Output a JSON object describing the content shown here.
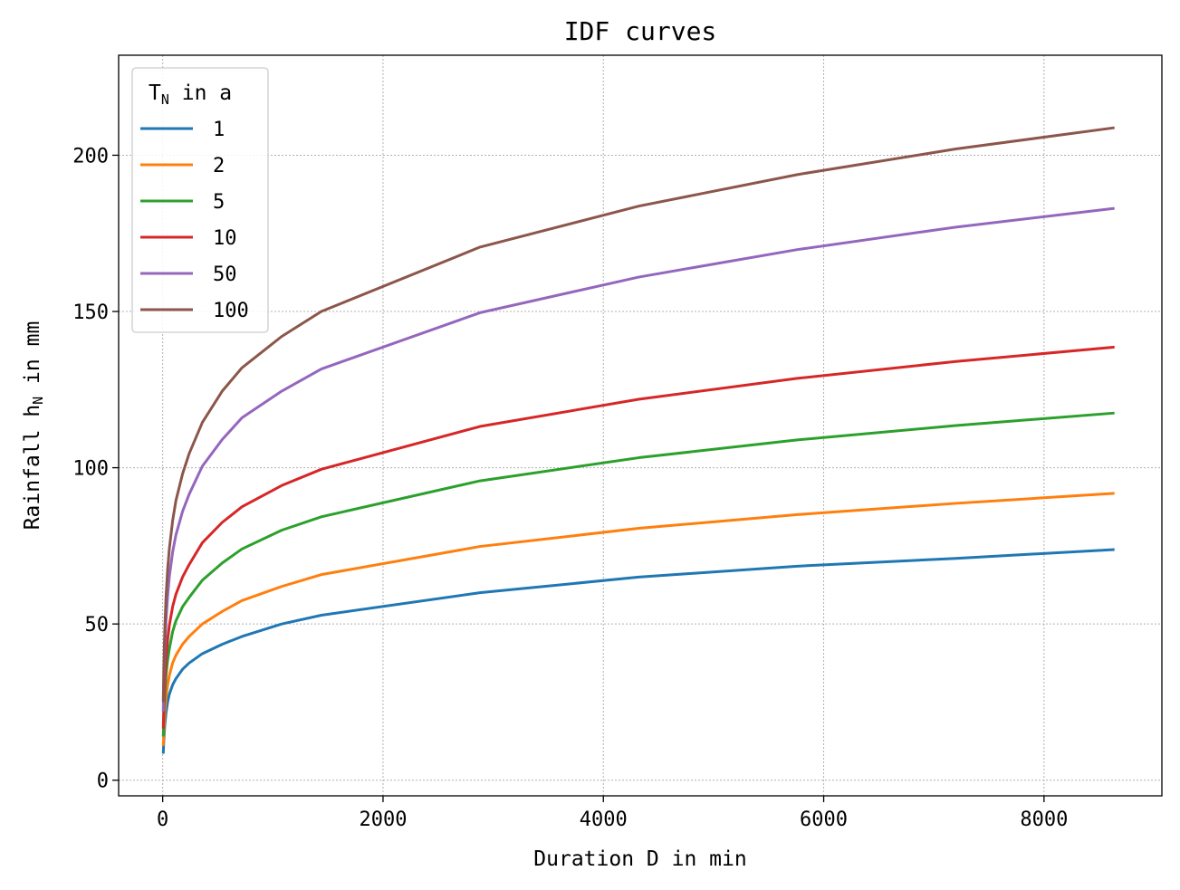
{
  "chart_data": {
    "type": "line",
    "title": "IDF curves",
    "xlabel": "Duration D in min",
    "ylabel_main": "Rainfall h",
    "ylabel_sub": "N",
    "ylabel_unit": " in mm",
    "xlim": [
      -400,
      9070
    ],
    "ylim": [
      -5,
      232
    ],
    "xticks": [
      0,
      2000,
      4000,
      6000,
      8000
    ],
    "yticks": [
      0,
      50,
      100,
      150,
      200
    ],
    "grid": true,
    "legend": {
      "placement": "top-left",
      "title_main": "T",
      "title_sub": "N",
      "title_rest": " in a"
    },
    "x": [
      5,
      10,
      15,
      20,
      30,
      45,
      60,
      90,
      120,
      180,
      240,
      360,
      540,
      720,
      1080,
      1440,
      2880,
      4320,
      5760,
      7200,
      8640
    ],
    "series": [
      {
        "name": "1",
        "color": "#1f77b4",
        "values": [
          8.5,
          12.5,
          15.5,
          18,
          21.5,
          25,
          27.5,
          30.5,
          32.5,
          35.5,
          37.5,
          40.5,
          43.5,
          46,
          50,
          52.8,
          60,
          65,
          68.5,
          71,
          73.8
        ]
      },
      {
        "name": "2",
        "color": "#ff7f0e",
        "values": [
          11,
          15.5,
          19,
          22,
          26.5,
          30.5,
          33.5,
          37.5,
          40,
          43.5,
          46,
          50,
          54,
          57.5,
          62,
          65.8,
          74.8,
          80.6,
          85,
          88.6,
          91.8
        ]
      },
      {
        "name": "5",
        "color": "#2ca02c",
        "values": [
          14,
          20,
          24.5,
          28,
          33.5,
          38.5,
          42,
          47.5,
          51,
          55.5,
          58.5,
          64,
          69.5,
          74,
          80,
          84.3,
          95.8,
          103.2,
          108.9,
          113.5,
          117.5
        ]
      },
      {
        "name": "10",
        "color": "#d62728",
        "values": [
          16.5,
          23.5,
          28.5,
          32.5,
          39,
          45,
          49.5,
          55.5,
          59.5,
          65,
          69,
          76,
          82.5,
          87.5,
          94.3,
          99.5,
          113.2,
          121.9,
          128.6,
          134,
          138.6
        ]
      },
      {
        "name": "50",
        "color": "#9467bd",
        "values": [
          22,
          31,
          37.5,
          43,
          51,
          59,
          65,
          73,
          78.5,
          86,
          91.5,
          100.5,
          109,
          116,
          124.5,
          131.6,
          149.6,
          161,
          169.8,
          177,
          183
        ]
      },
      {
        "name": "100",
        "color": "#8c564b",
        "values": [
          25,
          35.5,
          43,
          49,
          58.5,
          67.5,
          74,
          83,
          89.5,
          98,
          104.5,
          114.5,
          124.5,
          132,
          142,
          150,
          170.6,
          183.7,
          193.8,
          202,
          208.8
        ]
      }
    ]
  }
}
